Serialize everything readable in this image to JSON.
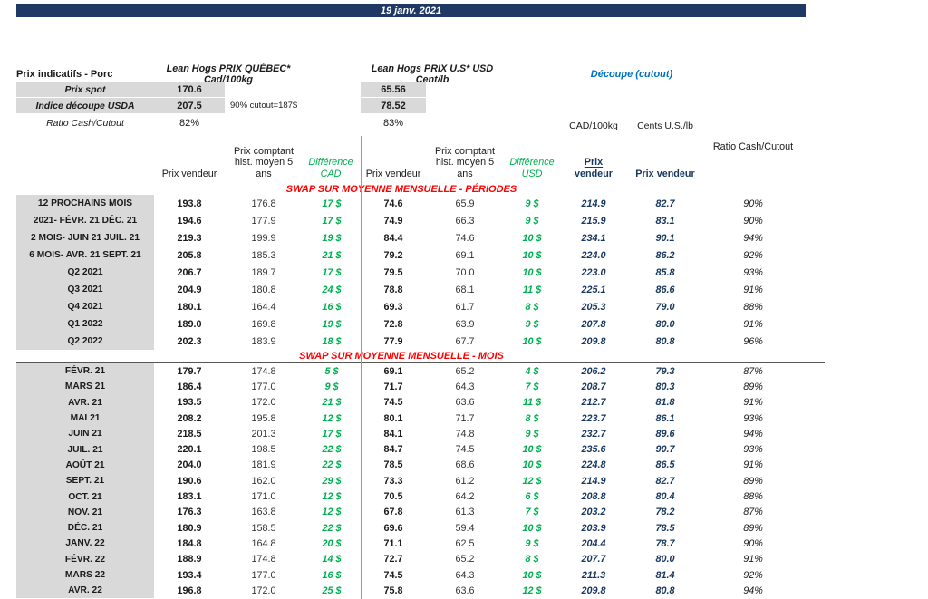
{
  "header": {
    "date": "19 janv. 2021"
  },
  "top": {
    "title": "Prix indicatifs - Porc",
    "quebec": "Lean Hogs PRIX QUÉBEC* Cad/100kg",
    "us": "Lean Hogs PRIX U.S* USD Cent/lb",
    "cutout": "Découpe (cutout)",
    "spot": {
      "label": "Prix spot",
      "cad": "170.6",
      "usd": "65.56"
    },
    "usda": {
      "label": "Indice découpe USDA",
      "cad": "207.5",
      "note": "90% cutout=187$",
      "usd": "78.52"
    },
    "ratio": {
      "label": "Ratio Cash/Cutout",
      "cad": "82%",
      "usd": "83%"
    },
    "units": {
      "cad": "CAD/100kg",
      "us": "Cents U.S./lb"
    }
  },
  "columns": {
    "pv": "Prix vendeur",
    "hist": "Prix comptant hist. moyen 5 ans",
    "diff_cad": "Différence CAD",
    "diff_usd": "Différence USD",
    "pv_cut": "Prix vendeur",
    "ratio": "Ratio Cash/Cutout"
  },
  "sections": {
    "periods_title": "SWAP SUR MOYENNE MENSUELLE - PÉRIODES",
    "months_title": "SWAP SUR MOYENNE MENSUELLE - MOIS"
  },
  "periods_rows": [
    [
      "12 PROCHAINS MOIS",
      "193.8",
      "176.8",
      "17 $",
      "74.6",
      "65.9",
      "9 $",
      "214.9",
      "82.7",
      "90%"
    ],
    [
      "2021- FÉVR. 21 DÉC. 21",
      "194.6",
      "177.9",
      "17 $",
      "74.9",
      "66.3",
      "9 $",
      "215.9",
      "83.1",
      "90%"
    ],
    [
      "2 MOIS- JUIN 21 JUIL. 21",
      "219.3",
      "199.9",
      "19 $",
      "84.4",
      "74.6",
      "10 $",
      "234.1",
      "90.1",
      "94%"
    ],
    [
      "6 MOIS- AVR. 21 SEPT. 21",
      "205.8",
      "185.3",
      "21 $",
      "79.2",
      "69.1",
      "10 $",
      "224.0",
      "86.2",
      "92%"
    ],
    [
      "Q2 2021",
      "206.7",
      "189.7",
      "17 $",
      "79.5",
      "70.0",
      "10 $",
      "223.0",
      "85.8",
      "93%"
    ],
    [
      "Q3 2021",
      "204.9",
      "180.8",
      "24 $",
      "78.8",
      "68.1",
      "11 $",
      "225.1",
      "86.6",
      "91%"
    ],
    [
      "Q4 2021",
      "180.1",
      "164.4",
      "16 $",
      "69.3",
      "61.7",
      "8 $",
      "205.3",
      "79.0",
      "88%"
    ],
    [
      "Q1 2022",
      "189.0",
      "169.8",
      "19 $",
      "72.8",
      "63.9",
      "9 $",
      "207.8",
      "80.0",
      "91%"
    ],
    [
      "Q2 2022",
      "202.3",
      "183.9",
      "18 $",
      "77.9",
      "67.7",
      "10 $",
      "209.8",
      "80.8",
      "96%"
    ]
  ],
  "months_rows": [
    [
      "FÉVR. 21",
      "179.7",
      "174.8",
      "5 $",
      "69.1",
      "65.2",
      "4 $",
      "206.2",
      "79.3",
      "87%"
    ],
    [
      "MARS 21",
      "186.4",
      "177.0",
      "9 $",
      "71.7",
      "64.3",
      "7 $",
      "208.7",
      "80.3",
      "89%"
    ],
    [
      "AVR. 21",
      "193.5",
      "172.0",
      "21 $",
      "74.5",
      "63.6",
      "11 $",
      "212.7",
      "81.8",
      "91%"
    ],
    [
      "MAI 21",
      "208.2",
      "195.8",
      "12 $",
      "80.1",
      "71.7",
      "8 $",
      "223.7",
      "86.1",
      "93%"
    ],
    [
      "JUIN 21",
      "218.5",
      "201.3",
      "17 $",
      "84.1",
      "74.8",
      "9 $",
      "232.7",
      "89.6",
      "94%"
    ],
    [
      "JUIL. 21",
      "220.1",
      "198.5",
      "22 $",
      "84.7",
      "74.5",
      "10 $",
      "235.6",
      "90.7",
      "93%"
    ],
    [
      "AOÛT 21",
      "204.0",
      "181.9",
      "22 $",
      "78.5",
      "68.6",
      "10 $",
      "224.8",
      "86.5",
      "91%"
    ],
    [
      "SEPT. 21",
      "190.6",
      "162.0",
      "29 $",
      "73.3",
      "61.2",
      "12 $",
      "214.9",
      "82.7",
      "89%"
    ],
    [
      "OCT. 21",
      "183.1",
      "171.0",
      "12 $",
      "70.5",
      "64.2",
      "6 $",
      "208.8",
      "80.4",
      "88%"
    ],
    [
      "NOV. 21",
      "176.3",
      "163.8",
      "12 $",
      "67.8",
      "61.3",
      "7 $",
      "203.2",
      "78.2",
      "87%"
    ],
    [
      "DÉC. 21",
      "180.9",
      "158.5",
      "22 $",
      "69.6",
      "59.4",
      "10 $",
      "203.9",
      "78.5",
      "89%"
    ],
    [
      "JANV. 22",
      "184.8",
      "164.8",
      "20 $",
      "71.1",
      "62.5",
      "9 $",
      "204.4",
      "78.7",
      "90%"
    ],
    [
      "FÉVR. 22",
      "188.9",
      "174.8",
      "14 $",
      "72.7",
      "65.2",
      "8 $",
      "207.7",
      "80.0",
      "91%"
    ],
    [
      "MARS 22",
      "193.4",
      "177.0",
      "16 $",
      "74.5",
      "64.3",
      "10 $",
      "211.3",
      "81.4",
      "92%"
    ],
    [
      "AVR. 22",
      "196.8",
      "172.0",
      "25 $",
      "75.8",
      "63.6",
      "12 $",
      "209.8",
      "80.8",
      "94%"
    ]
  ],
  "colors": {
    "navy_bar": "#1F3864",
    "gray_cell": "#D9D9D9",
    "diff_green": "#00B050",
    "section_red": "#FF0000",
    "cutout_blue": "#0070C0",
    "cutout_value_blue": "#17375E"
  }
}
